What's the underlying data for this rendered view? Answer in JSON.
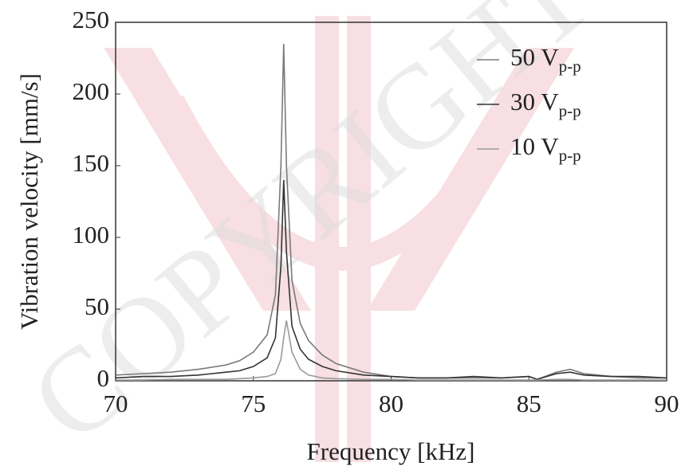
{
  "chart_data": {
    "type": "line",
    "watermark": "COPYRIGHT",
    "xlabel": "Frequency [kHz]",
    "ylabel": "Vibration velocity [mm/s]",
    "x": [
      70,
      71,
      72,
      73,
      74,
      74.5,
      75,
      75.5,
      75.8,
      76,
      76.1,
      76.2,
      76.4,
      76.7,
      77,
      77.5,
      78,
      79,
      80,
      81,
      82,
      83,
      84,
      85,
      85.3,
      86,
      86.5,
      87,
      88,
      89,
      90
    ],
    "series": [
      {
        "name": "50 V",
        "subscript": "p-p",
        "color": "#7a7a7a",
        "values": [
          4,
          5,
          6,
          8,
          11,
          14,
          20,
          32,
          60,
          150,
          235,
          150,
          70,
          40,
          28,
          18,
          12,
          6,
          3,
          2,
          2,
          2,
          2,
          3,
          1,
          6,
          8,
          5,
          3,
          2,
          2
        ]
      },
      {
        "name": "30 V",
        "subscript": "p-p",
        "color": "#333333",
        "values": [
          2,
          3,
          3,
          4,
          6,
          7,
          10,
          16,
          30,
          80,
          140,
          90,
          38,
          22,
          15,
          10,
          7,
          4,
          3,
          2,
          2,
          3,
          2,
          3,
          1,
          5,
          6,
          4,
          3,
          3,
          2
        ]
      },
      {
        "name": "10 V",
        "subscript": "p-p",
        "color": "#9a9a9a",
        "values": [
          0.5,
          0.5,
          1,
          1,
          1,
          1.5,
          2,
          3,
          5,
          15,
          30,
          42,
          20,
          8,
          4,
          2,
          1.5,
          1,
          1,
          0.5,
          0.5,
          0.5,
          0.5,
          0.5,
          0.5,
          1,
          1,
          0.5,
          0.5,
          0.5,
          0.5
        ]
      }
    ],
    "xlim": [
      70,
      90
    ],
    "xticks": [
      70,
      75,
      80,
      85,
      90
    ],
    "ylim": [
      0,
      250
    ],
    "yticks": [
      0,
      50,
      100,
      150,
      200,
      250
    ],
    "legend": "upper right",
    "grid": false
  }
}
